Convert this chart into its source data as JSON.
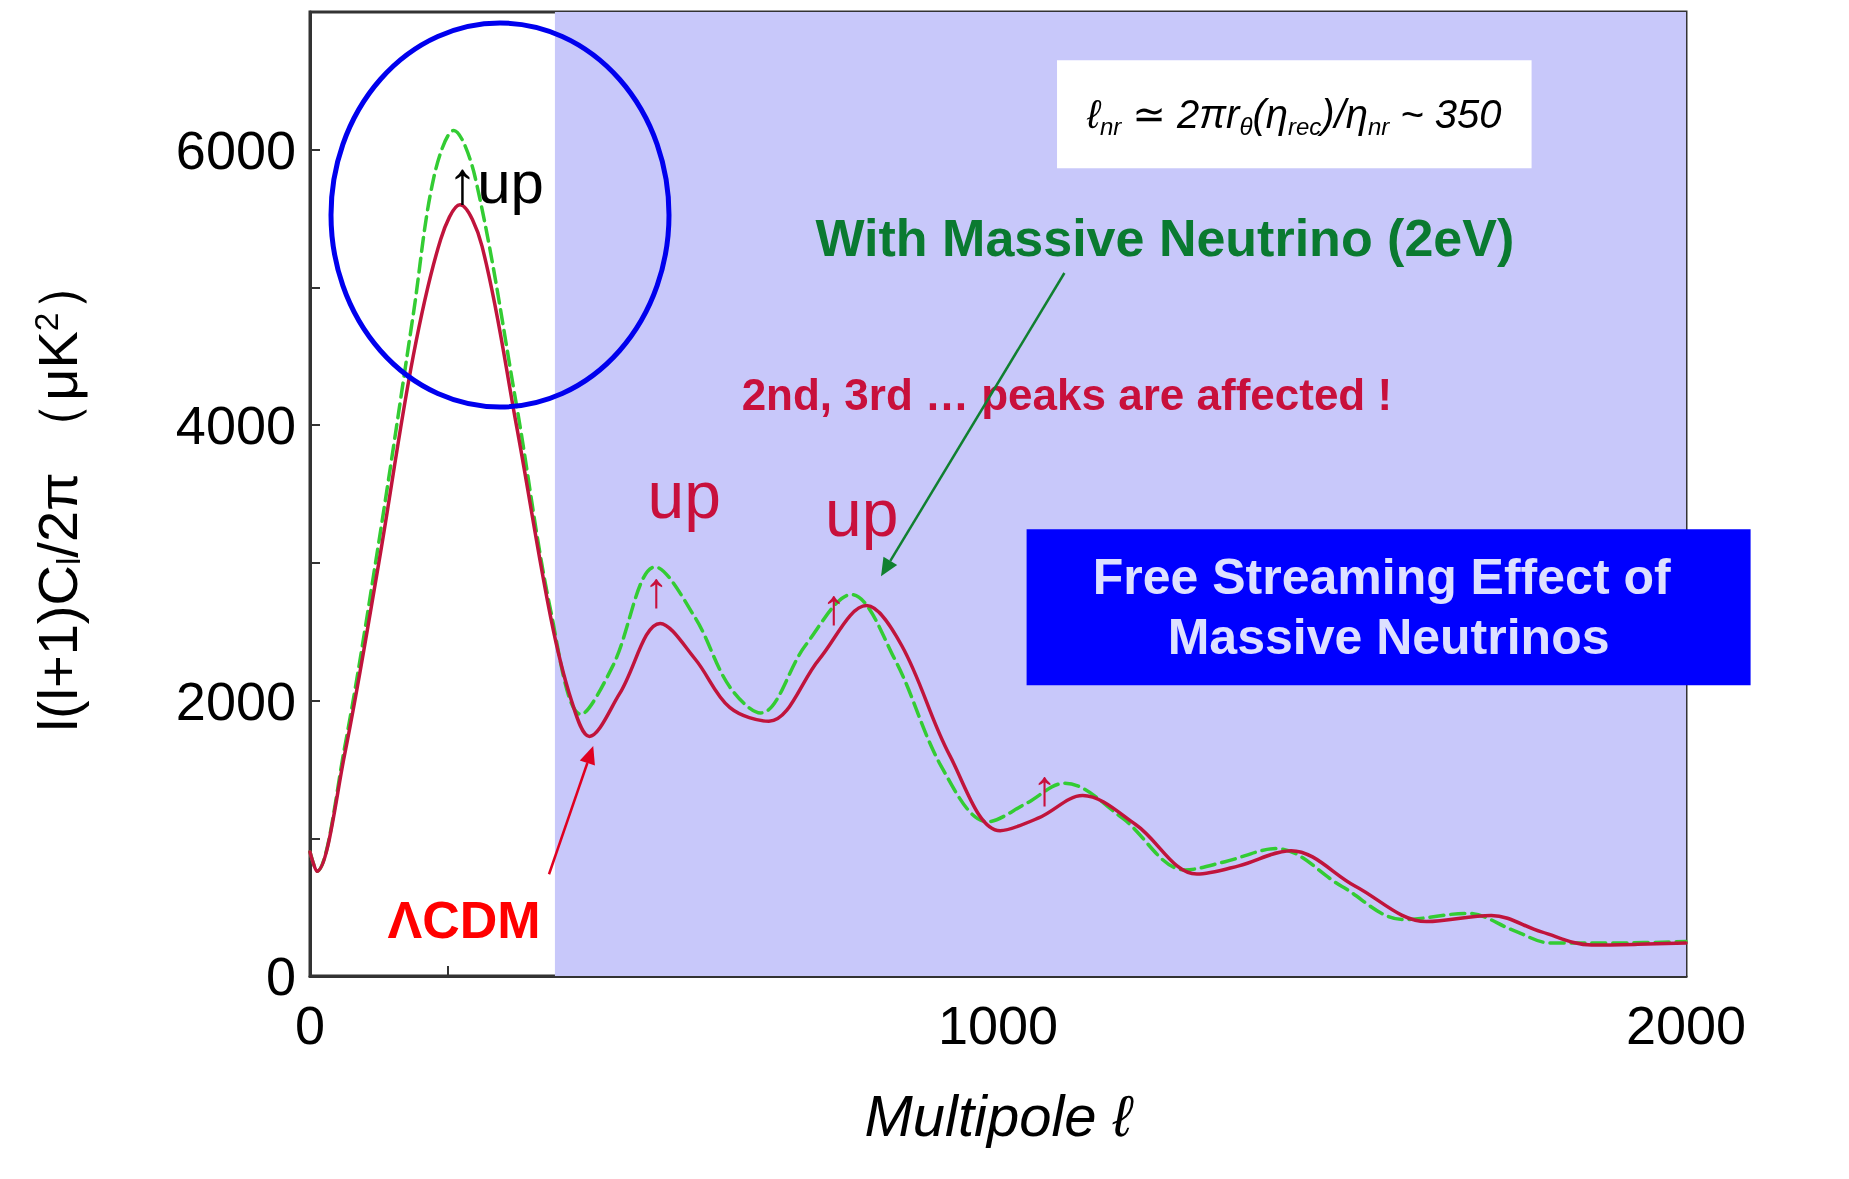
{
  "chart_data": {
    "type": "line",
    "xlabel": "Multipole ℓ",
    "ylabel": "l(l+1)C$_{l}$/2π （μK$^{2}$）",
    "xlim": [
      0,
      2000
    ],
    "ylim": [
      0,
      7000
    ],
    "xticks": [
      0,
      {
        "value": 200,
        "label": null
      },
      {
        "value": 400,
        "label": null
      },
      {
        "value": 600,
        "label": null
      },
      {
        "value": 800,
        "label": null
      },
      1000,
      {
        "value": 1200,
        "label": null
      },
      {
        "value": 1400,
        "label": null
      },
      {
        "value": 1600,
        "label": null
      },
      {
        "value": 1800,
        "label": null
      },
      2000
    ],
    "yticks": [
      0,
      {
        "value": 1000,
        "label": null
      },
      2000,
      {
        "value": 3000,
        "label": null
      },
      4000,
      {
        "value": 5000,
        "label": null
      },
      6000
    ],
    "grid": false,
    "marker": "none",
    "bands": [
      {
        "axis": "x",
        "from": 356,
        "to": 2000,
        "color": "#c8c8fa"
      }
    ],
    "series": [
      {
        "color": "#c0143c",
        "line_style": "solid",
        "x": [
          0,
          10,
          50,
          100,
          150,
          190,
          218,
          250,
          300,
          350,
          380,
          406,
          450,
          509,
          560,
          610,
          667,
          740,
          809,
          860,
          930,
          1003,
          1060,
          1123,
          1200,
          1289,
          1350,
          1426,
          1520,
          1623,
          1717,
          1790,
          1863,
          1930,
          2000
        ],
        "values": [
          900,
          760,
          1600,
          3000,
          4500,
          5350,
          5600,
          5300,
          4000,
          2600,
          2000,
          1740,
          2050,
          2560,
          2300,
          1950,
          1850,
          2300,
          2690,
          2400,
          1600,
          1055,
          1150,
          1310,
          1100,
          740,
          800,
          910,
          650,
          395,
          440,
          320,
          225,
          230,
          240
        ]
      },
      {
        "color": "#33cc33",
        "line_style": "dashed",
        "x": [
          0,
          10,
          50,
          100,
          150,
          180,
          209,
          240,
          300,
          350,
          394,
          440,
          502,
          560,
          610,
          655,
          720,
          787,
          850,
          920,
          985,
          1040,
          1097,
          1180,
          1272,
          1330,
          1405,
          1500,
          1589,
          1683,
          1750,
          1803,
          1900,
          2000
        ],
        "values": [
          900,
          760,
          1650,
          3150,
          4800,
          5800,
          6140,
          5800,
          4150,
          2650,
          1900,
          2250,
          2970,
          2600,
          2100,
          1910,
          2400,
          2770,
          2300,
          1500,
          1120,
          1250,
          1400,
          1150,
          770,
          830,
          925,
          650,
          410,
          455,
          330,
          240,
          240,
          250
        ]
      }
    ],
    "annotations": [
      "↑up",
      "up",
      "up",
      "↑",
      "↑",
      "↑",
      "ΛCDM",
      "With Massive Neutrino (2eV)",
      "2nd, 3rd … peaks are affected !",
      "ℓ$_{nr}$ ≃ 2πr$_{θ}$(η$_{rec}$)/η$_{nr}$ ~ 350",
      "Free Streaming Effect of Massive Neutrinos"
    ]
  }
}
